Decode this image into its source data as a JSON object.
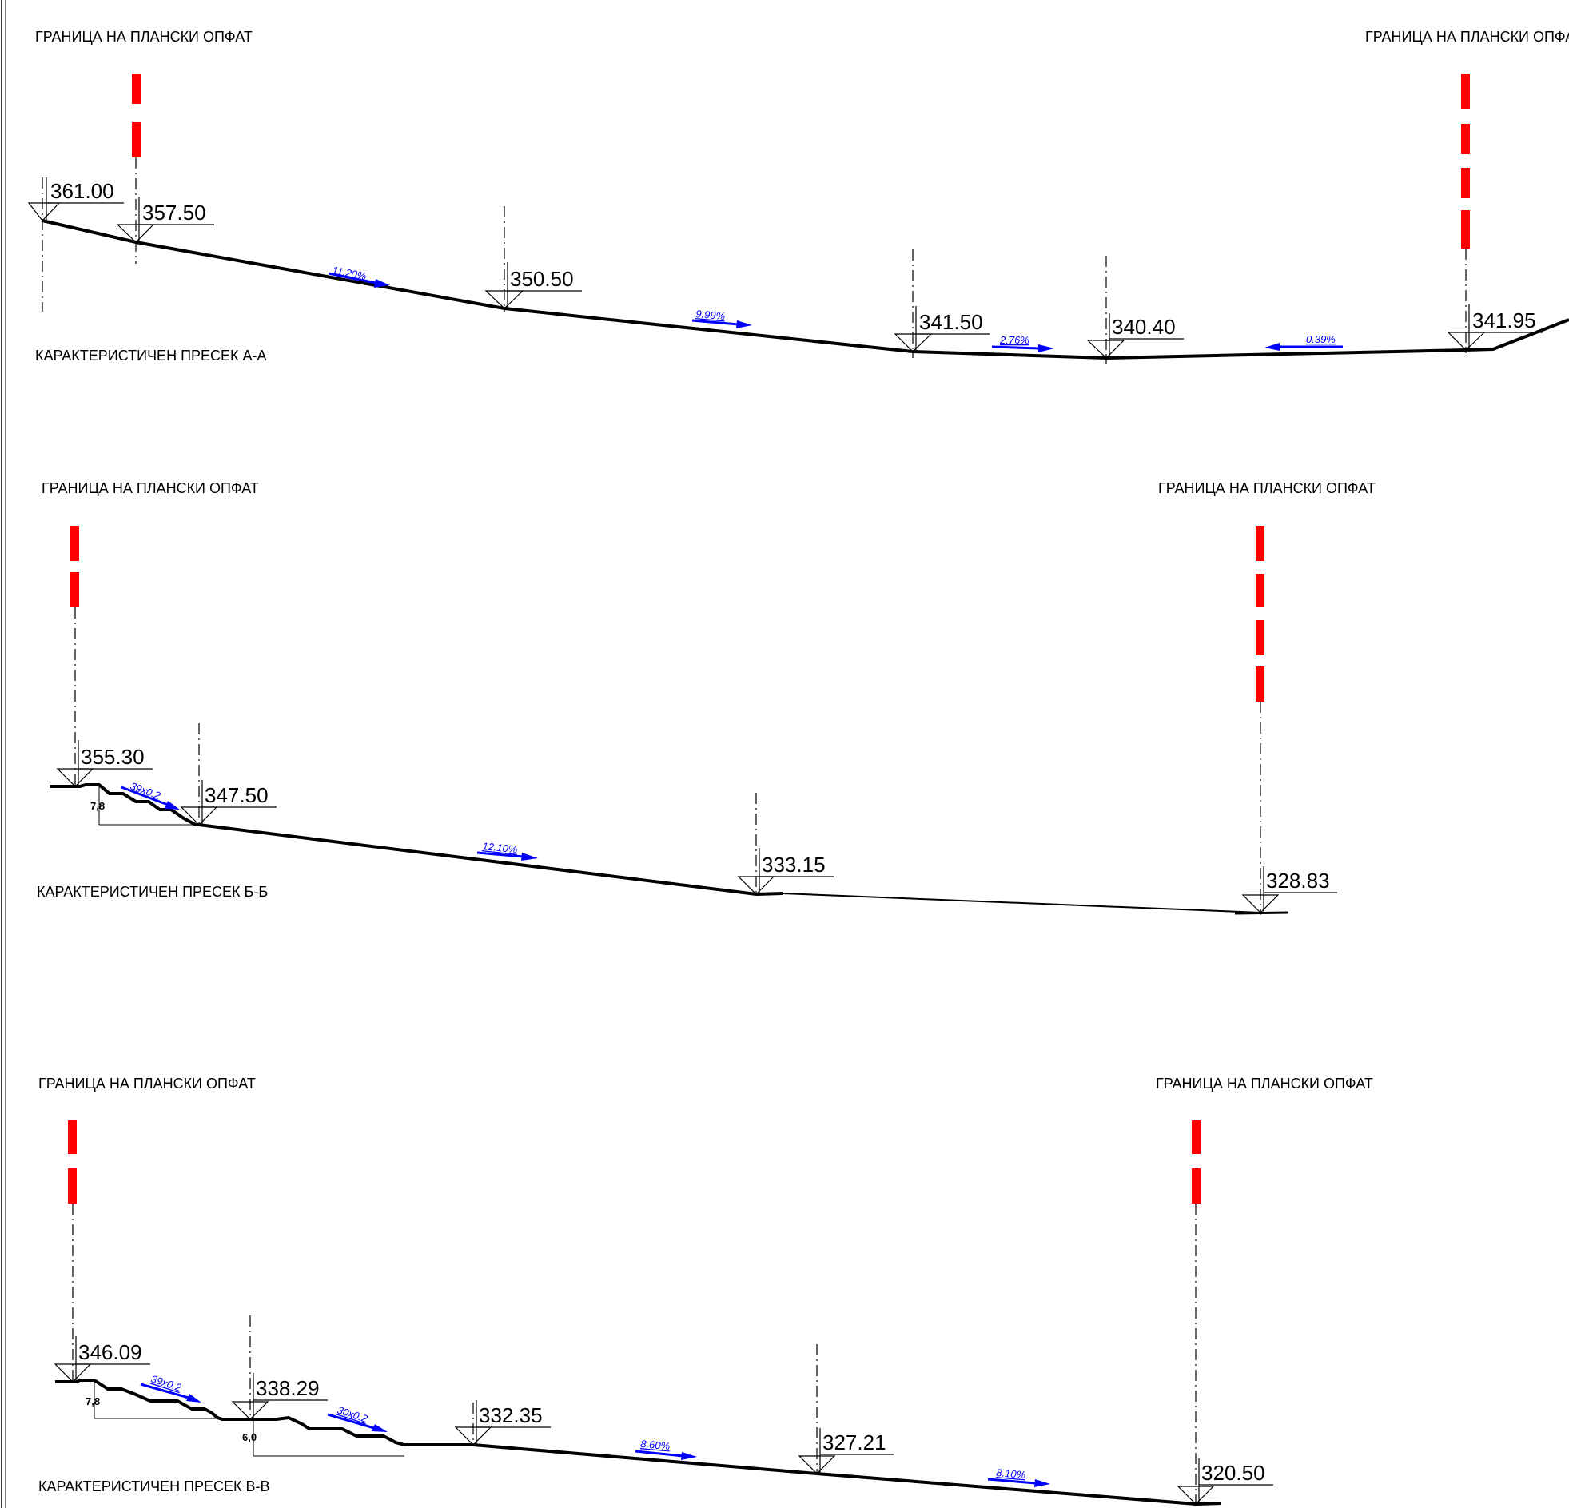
{
  "colors": {
    "ink": "#000000",
    "boundary": "#ff0000",
    "slope": "#0000ff",
    "frame": "#000000"
  },
  "sections": [
    {
      "id": "A-A",
      "title": "КАРАКТЕРИСТИЧЕН ПРЕСЕК  А-А",
      "boundary_labels": [
        "ГРАНИЦА НА ПЛАНСКИ ОПФАТ",
        "ГРАНИЦА НА ПЛАНСКИ ОПФАТ"
      ],
      "elevations": [
        "361.00",
        "357.50",
        "350.50",
        "341.50",
        "340.40",
        "341.95"
      ],
      "slopes": [
        "11.20%",
        "9.99%",
        "2.76%",
        "0.39%"
      ],
      "steps": []
    },
    {
      "id": "Б-Б",
      "title": "КАРАКТЕРИСТИЧЕН ПРЕСЕК  Б-Б",
      "boundary_labels": [
        "ГРАНИЦА НА ПЛАНСКИ ОПФАТ",
        "ГРАНИЦА НА ПЛАНСКИ ОПФАТ"
      ],
      "elevations": [
        "355.30",
        "347.50",
        "333.15",
        "328.83"
      ],
      "slopes": [
        "39x0.2",
        "12.10%"
      ],
      "steps": [
        "7,8"
      ]
    },
    {
      "id": "В-В",
      "title": "КАРАКТЕРИСТИЧЕН ПРЕСЕК  В-В",
      "boundary_labels": [
        "ГРАНИЦА НА ПЛАНСКИ ОПФАТ",
        "ГРАНИЦА НА ПЛАНСКИ ОПФАТ"
      ],
      "elevations": [
        "346.09",
        "338.29",
        "332.35",
        "327.21",
        "320.50"
      ],
      "slopes": [
        "39x0.2",
        "30x0.2",
        "8.60%",
        "8.10%"
      ],
      "steps": [
        "7,8",
        "6,0"
      ]
    }
  ]
}
